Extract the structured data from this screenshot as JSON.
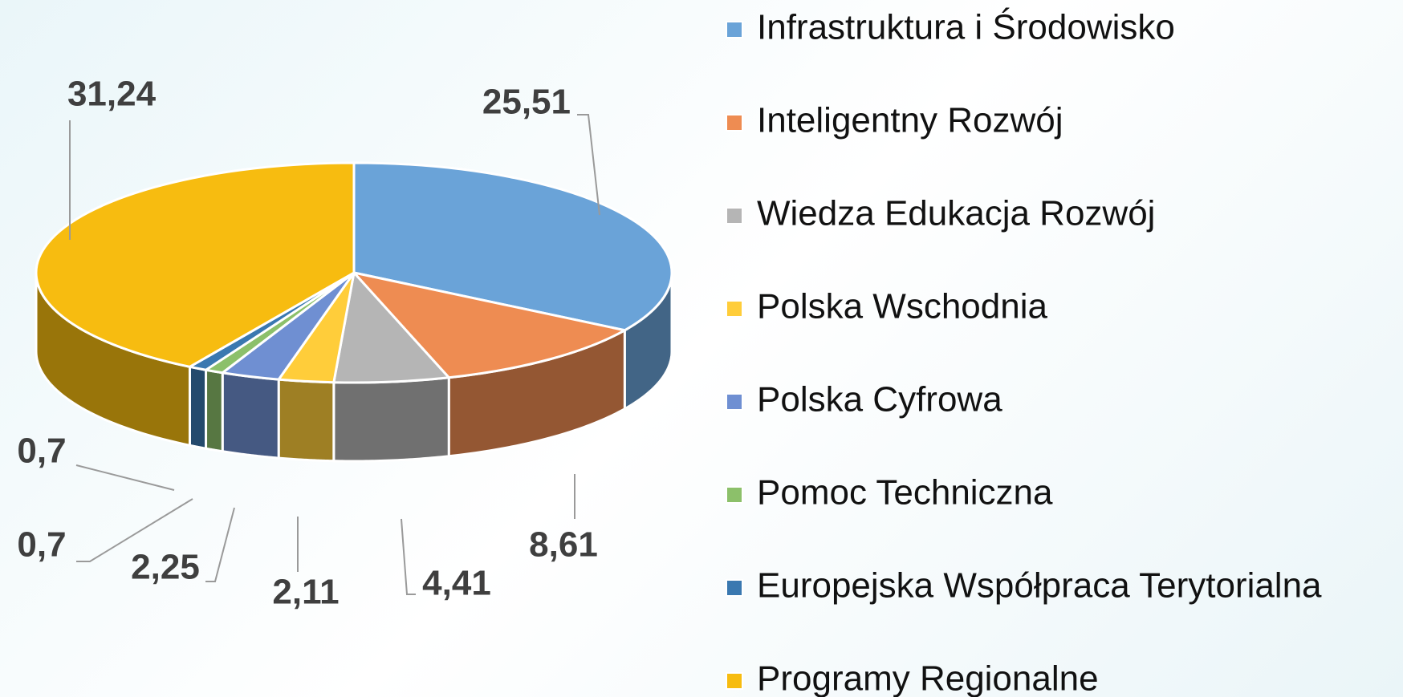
{
  "chart_data": {
    "type": "pie",
    "categories": [
      "Infrastruktura i Środowisko",
      "Inteligentny Rozwój",
      "Wiedza Edukacja Rozwój",
      "Polska Wschodnia",
      "Polska Cyfrowa",
      "Pomoc Techniczna",
      "Europejska Współpraca Terytorialna",
      "Programy Regionalne"
    ],
    "values": [
      25.51,
      8.61,
      4.41,
      2.11,
      2.25,
      0.7,
      0.7,
      31.24
    ],
    "value_labels": [
      "25,51",
      "8,61",
      "4,41",
      "2,11",
      "2,25",
      "0,7",
      "0,7",
      "31,24"
    ],
    "colors": [
      "#6aa3d8",
      "#ee8c52",
      "#b5b5b5",
      "#ffcd3a",
      "#6f8fd2",
      "#8cc06a",
      "#3a78b0",
      "#f7bc10"
    ],
    "legend": "right"
  }
}
